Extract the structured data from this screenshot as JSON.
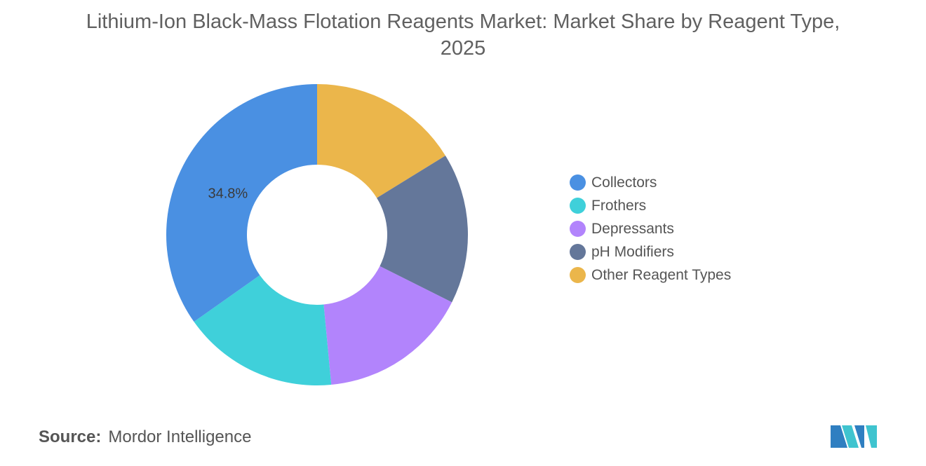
{
  "chart_data": {
    "type": "pie",
    "title": "Lithium-Ion Black-Mass Flotation Reagents Market: Market Share by Reagent Type, 2025",
    "categories": [
      "Collectors",
      "Frothers",
      "Depressants",
      "pH Modifiers",
      "Other Reagent Types"
    ],
    "values": [
      34.8,
      16.7,
      16.1,
      16.2,
      16.2
    ],
    "colors": [
      "#4a90e2",
      "#3fd0da",
      "#b284fc",
      "#64779a",
      "#ebb64b"
    ],
    "data_labels": [
      {
        "category": "Collectors",
        "text": "34.8%"
      }
    ],
    "legend_position": "right",
    "donut": true
  },
  "source": {
    "label": "Source:",
    "value": "Mordor Intelligence"
  }
}
